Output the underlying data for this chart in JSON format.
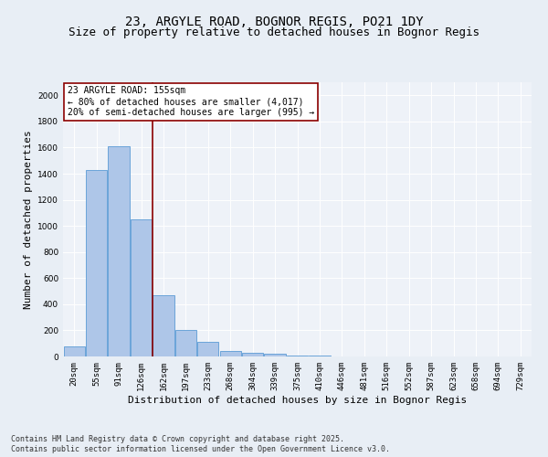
{
  "title_line1": "23, ARGYLE ROAD, BOGNOR REGIS, PO21 1DY",
  "title_line2": "Size of property relative to detached houses in Bognor Regis",
  "xlabel": "Distribution of detached houses by size in Bognor Regis",
  "ylabel": "Number of detached properties",
  "categories": [
    "20sqm",
    "55sqm",
    "91sqm",
    "126sqm",
    "162sqm",
    "197sqm",
    "233sqm",
    "268sqm",
    "304sqm",
    "339sqm",
    "375sqm",
    "410sqm",
    "446sqm",
    "481sqm",
    "516sqm",
    "552sqm",
    "587sqm",
    "623sqm",
    "658sqm",
    "694sqm",
    "729sqm"
  ],
  "values": [
    75,
    1430,
    1610,
    1050,
    470,
    200,
    110,
    45,
    30,
    20,
    10,
    5,
    2,
    1,
    0,
    0,
    0,
    0,
    0,
    0,
    0
  ],
  "bar_color": "#aec6e8",
  "bar_edge_color": "#5b9bd5",
  "vline_pos": 3.5,
  "vline_color": "#8b0000",
  "annotation_text": "23 ARGYLE ROAD: 155sqm\n← 80% of detached houses are smaller (4,017)\n20% of semi-detached houses are larger (995) →",
  "annotation_box_color": "#ffffff",
  "annotation_box_edge": "#8b0000",
  "ylim": [
    0,
    2100
  ],
  "yticks": [
    0,
    200,
    400,
    600,
    800,
    1000,
    1200,
    1400,
    1600,
    1800,
    2000
  ],
  "bg_color": "#e8eef5",
  "plot_bg_color": "#eef2f8",
  "footer_line1": "Contains HM Land Registry data © Crown copyright and database right 2025.",
  "footer_line2": "Contains public sector information licensed under the Open Government Licence v3.0.",
  "title_fontsize": 10,
  "subtitle_fontsize": 9,
  "axis_label_fontsize": 8,
  "tick_fontsize": 6.5,
  "annotation_fontsize": 7,
  "footer_fontsize": 6
}
